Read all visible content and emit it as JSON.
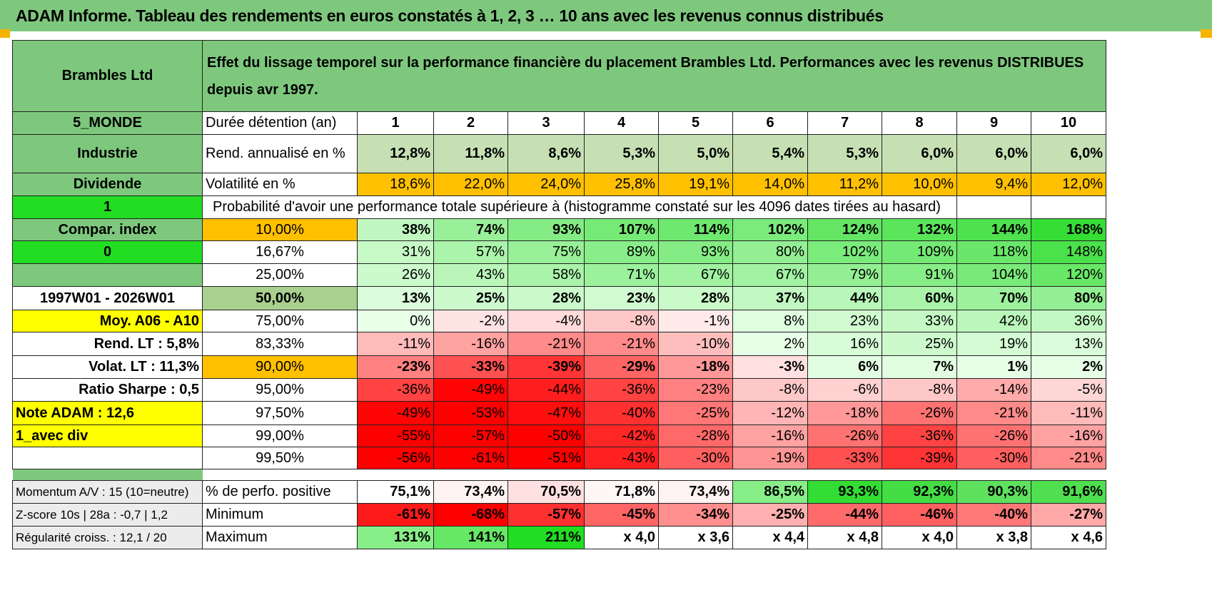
{
  "title": "ADAM Informe. Tableau des rendements en euros constatés à 1, 2, 3 … 10 ans avec les revenus connus distribués",
  "header": {
    "company": "Brambles Ltd",
    "description": "Effet du lissage temporel sur la performance financière du placement Brambles Ltd. Performances avec les revenus DISTRIBUES depuis avr 1997."
  },
  "left": {
    "region": "5_MONDE",
    "sector": "Industrie",
    "type": "Dividende",
    "flag1": "1",
    "compar_index": "Compar. index",
    "flag0": "0",
    "period": "1997W01 - 2026W01",
    "moy": "Moy. A06 - A10",
    "rend_lt": "Rend. LT :   5,8%",
    "volat_lt": "Volat. LT :   11,3%",
    "sharpe": "Ratio Sharpe :    0,5",
    "note": "Note ADAM : 12,6",
    "avec_div": "1_avec div",
    "momentum": "Momentum A/V : 15 (10=neutre)",
    "zscore": "Z-score 10s | 28a : -0,7 | 1,2",
    "regularite": "Régularité croiss. : 12,1 / 20"
  },
  "duration": {
    "label": "Durée détention (an)",
    "years": [
      "1",
      "2",
      "3",
      "4",
      "5",
      "6",
      "7",
      "8",
      "9",
      "10"
    ]
  },
  "rend": {
    "label": "Rend. annualisé en %",
    "values": [
      "12,8%",
      "11,8%",
      "8,6%",
      "5,3%",
      "5,0%",
      "5,4%",
      "5,3%",
      "6,0%",
      "6,0%",
      "6,0%"
    ]
  },
  "volat": {
    "label": "Volatilité en %",
    "values": [
      "18,6%",
      "22,0%",
      "24,0%",
      "25,8%",
      "19,1%",
      "14,0%",
      "11,2%",
      "10,0%",
      "9,4%",
      "12,0%"
    ]
  },
  "proba_label": "Probabilité d'avoir une performance totale supérieure à (histogramme constaté sur les 4096 dates tirées au hasard)",
  "quantiles": [
    {
      "p": "10,00%",
      "values": [
        "38%",
        "74%",
        "93%",
        "107%",
        "114%",
        "102%",
        "124%",
        "132%",
        "144%",
        "168%"
      ]
    },
    {
      "p": "16,67%",
      "values": [
        "31%",
        "57%",
        "75%",
        "89%",
        "93%",
        "80%",
        "102%",
        "109%",
        "118%",
        "148%"
      ]
    },
    {
      "p": "25,00%",
      "values": [
        "26%",
        "43%",
        "58%",
        "71%",
        "67%",
        "67%",
        "79%",
        "91%",
        "104%",
        "120%"
      ]
    },
    {
      "p": "50,00%",
      "values": [
        "13%",
        "25%",
        "28%",
        "23%",
        "28%",
        "37%",
        "44%",
        "60%",
        "70%",
        "80%"
      ]
    },
    {
      "p": "75,00%",
      "values": [
        "0%",
        "-2%",
        "-4%",
        "-8%",
        "-1%",
        "8%",
        "23%",
        "33%",
        "42%",
        "36%"
      ]
    },
    {
      "p": "83,33%",
      "values": [
        "-11%",
        "-16%",
        "-21%",
        "-21%",
        "-10%",
        "2%",
        "16%",
        "25%",
        "19%",
        "13%"
      ]
    },
    {
      "p": "90,00%",
      "values": [
        "-23%",
        "-33%",
        "-39%",
        "-29%",
        "-18%",
        "-3%",
        "6%",
        "7%",
        "1%",
        "2%"
      ]
    },
    {
      "p": "95,00%",
      "values": [
        "-36%",
        "-49%",
        "-44%",
        "-36%",
        "-23%",
        "-8%",
        "-6%",
        "-8%",
        "-14%",
        "-5%"
      ]
    },
    {
      "p": "97,50%",
      "values": [
        "-49%",
        "-53%",
        "-47%",
        "-40%",
        "-25%",
        "-12%",
        "-18%",
        "-26%",
        "-21%",
        "-11%"
      ]
    },
    {
      "p": "99,00%",
      "values": [
        "-55%",
        "-57%",
        "-50%",
        "-42%",
        "-28%",
        "-16%",
        "-26%",
        "-36%",
        "-26%",
        "-16%"
      ]
    },
    {
      "p": "99,50%",
      "values": [
        "-56%",
        "-61%",
        "-51%",
        "-43%",
        "-30%",
        "-19%",
        "-33%",
        "-39%",
        "-30%",
        "-21%"
      ]
    }
  ],
  "positive": {
    "label": "% de perfo. positive",
    "values": [
      "75,1%",
      "73,4%",
      "70,5%",
      "71,8%",
      "73,4%",
      "86,5%",
      "93,3%",
      "92,3%",
      "90,3%",
      "91,6%"
    ]
  },
  "minimum": {
    "label": "Minimum",
    "values": [
      "-61%",
      "-68%",
      "-57%",
      "-45%",
      "-34%",
      "-25%",
      "-44%",
      "-46%",
      "-40%",
      "-27%"
    ]
  },
  "maximum": {
    "label": "Maximum",
    "values": [
      "131%",
      "141%",
      "211%",
      "x 4,0",
      "x 3,6",
      "x 4,4",
      "x 4,8",
      "x 4,0",
      "x 3,8",
      "x 4,6"
    ]
  },
  "colors": {
    "header_green": "#7ec87e",
    "bright_green": "#22dd22",
    "yellow": "#ffff00",
    "orange": "#ffc000",
    "negative_red": "#ff0000",
    "positive_green": "#33dd33"
  }
}
